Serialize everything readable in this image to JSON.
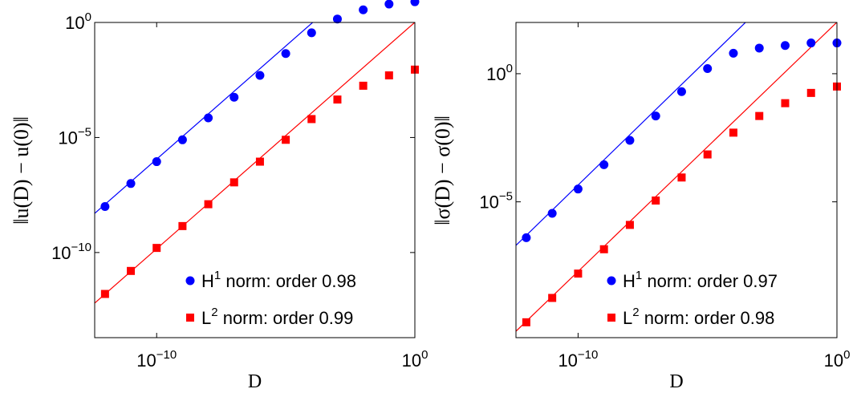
{
  "chart_data": [
    {
      "type": "scatter",
      "xlabel": "D",
      "ylabel": "‖u(D) − u(0)‖",
      "xscale": "log",
      "yscale": "log",
      "xlim_exponent": [
        -12.4,
        0
      ],
      "ylim_exponent": [
        -13.7,
        0
      ],
      "xticks": [
        {
          "base": "10",
          "exp": "−10",
          "value": -10
        },
        {
          "base": "10",
          "exp": "0",
          "value": 0
        }
      ],
      "yticks": [
        {
          "base": "10",
          "exp": "−10",
          "value": -10
        },
        {
          "base": "10",
          "exp": "−5",
          "value": -5
        },
        {
          "base": "10",
          "exp": "0",
          "value": 0
        }
      ],
      "legend_position": "bottom-right",
      "grid": false,
      "series": [
        {
          "name": "H1 norm: order 0.98",
          "legend_base": "H",
          "legend_sup": "1",
          "legend_rest": " norm: order 0.98",
          "marker": "circle",
          "color": "#0000ff",
          "x_exponents": [
            -12,
            -11,
            -10,
            -9,
            -8,
            -7,
            -6,
            -5,
            -4,
            -3,
            -2,
            -1,
            0
          ],
          "y_exponents": [
            -8.0,
            -7.0,
            -6.05,
            -5.1,
            -4.15,
            -3.25,
            -2.3,
            -1.35,
            -0.45,
            0.15,
            0.55,
            0.8,
            0.9
          ],
          "fit_line": {
            "x_exponents": [
              -12.4,
              -0.6
            ],
            "y_exponents": [
              -8.3,
              3.3
            ]
          }
        },
        {
          "name": "L2 norm: order 0.99",
          "legend_base": "L",
          "legend_sup": "2",
          "legend_rest": " norm: order 0.99",
          "marker": "square",
          "color": "#ff0000",
          "x_exponents": [
            -12,
            -11,
            -10,
            -9,
            -8,
            -7,
            -6,
            -5,
            -4,
            -3,
            -2,
            -1,
            0
          ],
          "y_exponents": [
            -11.8,
            -10.8,
            -9.8,
            -8.85,
            -7.9,
            -6.95,
            -6.05,
            -5.1,
            -4.2,
            -3.35,
            -2.75,
            -2.3,
            -2.05
          ],
          "fit_line": {
            "x_exponents": [
              -12.4,
              0.4
            ],
            "y_exponents": [
              -12.2,
              0.4
            ]
          }
        }
      ]
    },
    {
      "type": "scatter",
      "xlabel": "D",
      "ylabel": "‖σ(D) − σ(0)‖",
      "xscale": "log",
      "yscale": "log",
      "xlim_exponent": [
        -12.4,
        0
      ],
      "ylim_exponent": [
        -10.3,
        2.0
      ],
      "xticks": [
        {
          "base": "10",
          "exp": "−10",
          "value": -10
        },
        {
          "base": "10",
          "exp": "0",
          "value": 0
        }
      ],
      "yticks": [
        {
          "base": "10",
          "exp": "−5",
          "value": -5
        },
        {
          "base": "10",
          "exp": "0",
          "value": 0
        }
      ],
      "legend_position": "bottom-right",
      "grid": false,
      "series": [
        {
          "name": "H1 norm: order 0.97",
          "legend_base": "H",
          "legend_sup": "1",
          "legend_rest": " norm: order 0.97",
          "marker": "circle",
          "color": "#0000ff",
          "x_exponents": [
            -12,
            -11,
            -10,
            -9,
            -8,
            -7,
            -6,
            -5,
            -4,
            -3,
            -2,
            -1,
            0
          ],
          "y_exponents": [
            -6.4,
            -5.45,
            -4.5,
            -3.55,
            -2.6,
            -1.65,
            -0.7,
            0.2,
            0.8,
            1.0,
            1.1,
            1.2,
            1.2
          ],
          "fit_line": {
            "x_exponents": [
              -12.4,
              -1.7
            ],
            "y_exponents": [
              -6.7,
              3.8
            ]
          }
        },
        {
          "name": "L2 norm: order 0.98",
          "legend_base": "L",
          "legend_sup": "2",
          "legend_rest": " norm: order 0.98",
          "marker": "square",
          "color": "#ff0000",
          "x_exponents": [
            -12,
            -11,
            -10,
            -9,
            -8,
            -7,
            -6,
            -5,
            -4,
            -3,
            -2,
            -1,
            0
          ],
          "y_exponents": [
            -9.7,
            -8.75,
            -7.8,
            -6.85,
            -5.9,
            -4.95,
            -4.05,
            -3.15,
            -2.3,
            -1.65,
            -1.15,
            -0.75,
            -0.5
          ],
          "fit_line": {
            "x_exponents": [
              -12.4,
              0.4
            ],
            "y_exponents": [
              -10.05,
              2.4
            ]
          }
        }
      ]
    }
  ]
}
